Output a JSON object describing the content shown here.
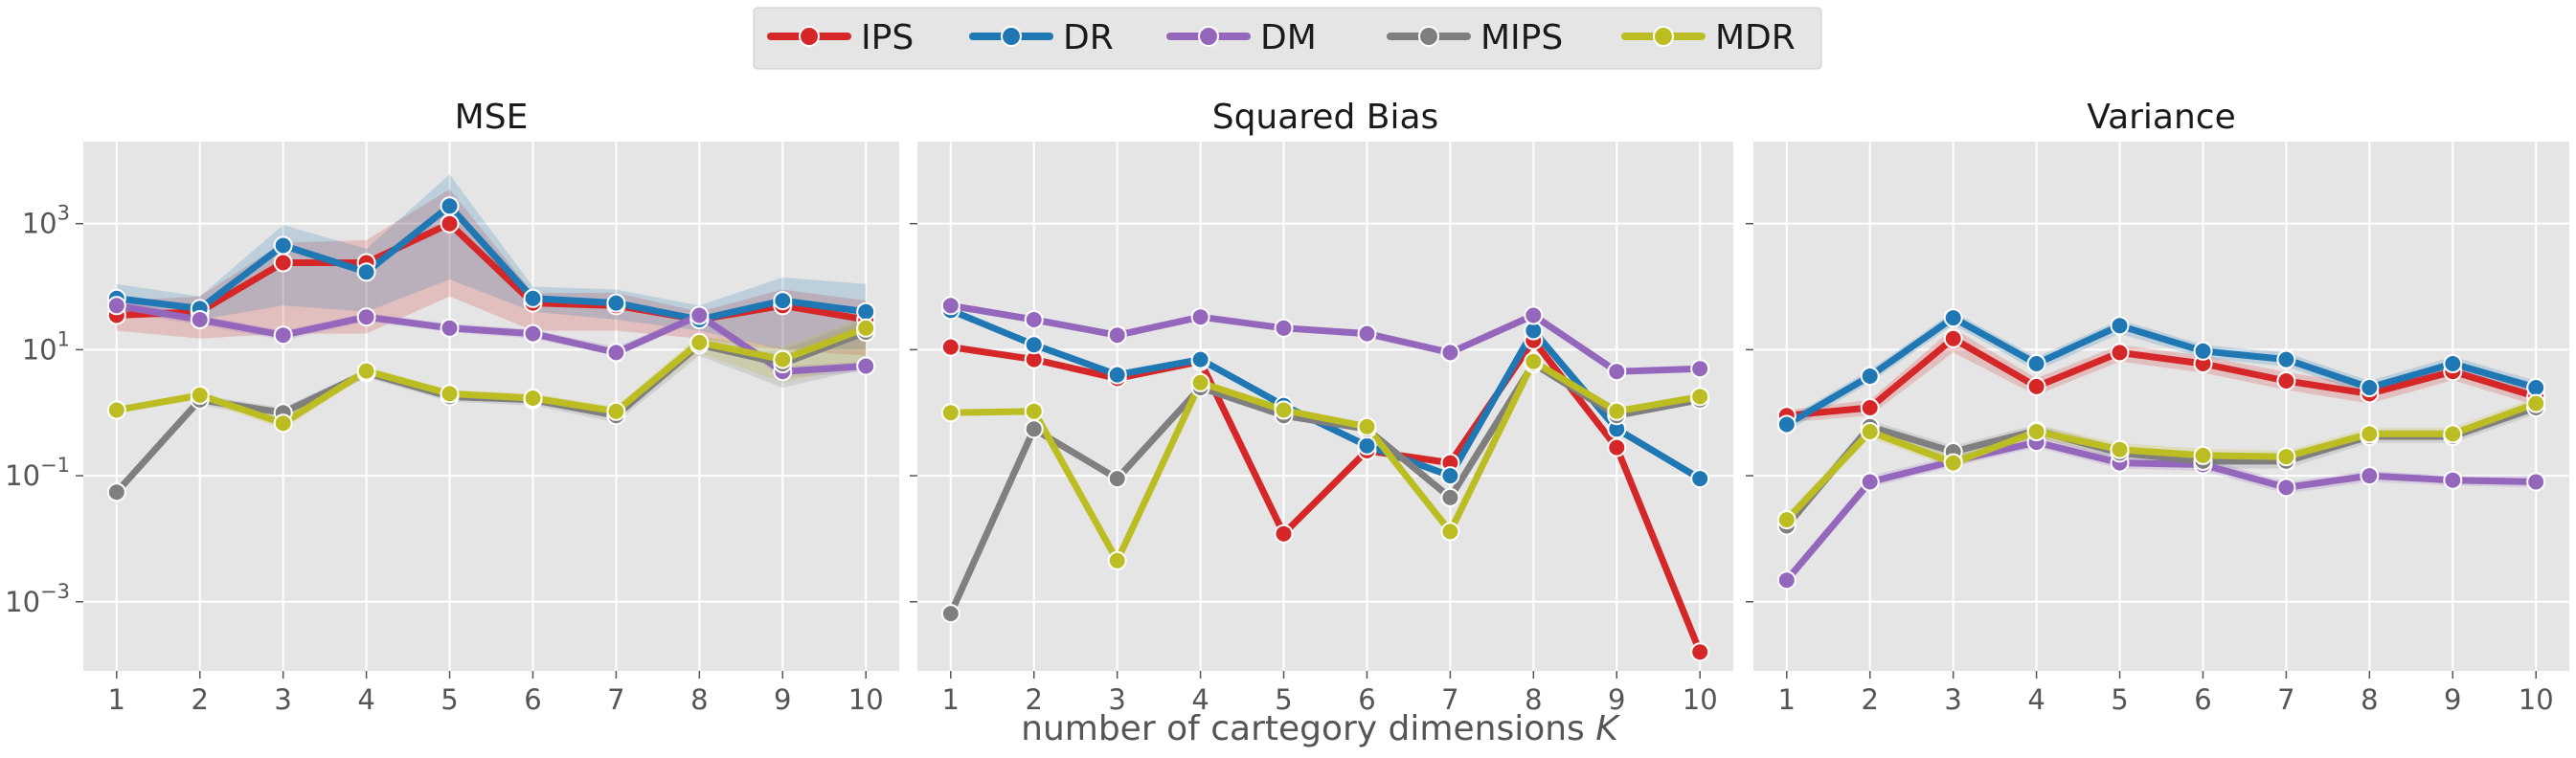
{
  "legend": {
    "position": "top-center",
    "entries": [
      {
        "label": "IPS",
        "color": "#d62728"
      },
      {
        "label": "DR",
        "color": "#1f77b4"
      },
      {
        "label": "DM",
        "color": "#9467bd"
      },
      {
        "label": "MIPS",
        "color": "#7f7f7f"
      },
      {
        "label": "MDR",
        "color": "#bcbd22"
      }
    ]
  },
  "xlabel": {
    "prefix": "number of cartegory dimensions ",
    "var": "K"
  },
  "chart_data": [
    {
      "type": "line",
      "title": "MSE",
      "y_scale": "log",
      "ylim": [
        8e-05,
        20000
      ],
      "yticks": [
        {
          "exp": "-3",
          "value": 0.001
        },
        {
          "exp": "-1",
          "value": 0.1
        },
        {
          "exp": "1",
          "value": 10
        },
        {
          "exp": "3",
          "value": 1000
        }
      ],
      "x": [
        1,
        2,
        3,
        4,
        5,
        6,
        7,
        8,
        9,
        10
      ],
      "grid": true,
      "series": [
        {
          "name": "IPS",
          "color": "#d62728",
          "values": [
            35,
            40,
            240,
            240,
            1000,
            55,
            50,
            30,
            50,
            30
          ],
          "band_low": [
            20,
            15,
            18,
            18,
            70,
            20,
            20,
            15,
            10,
            8
          ],
          "band_high": [
            60,
            70,
            500,
            550,
            3500,
            80,
            80,
            40,
            90,
            60
          ]
        },
        {
          "name": "DR",
          "color": "#1f77b4",
          "values": [
            65,
            45,
            450,
            170,
            1900,
            65,
            55,
            30,
            60,
            40
          ],
          "band_low": [
            35,
            30,
            50,
            40,
            130,
            40,
            30,
            20,
            10,
            10
          ],
          "band_high": [
            110,
            70,
            950,
            400,
            6000,
            100,
            90,
            50,
            140,
            110
          ]
        },
        {
          "name": "DM",
          "color": "#9467bd",
          "values": [
            50,
            30,
            17,
            33,
            22,
            18,
            9,
            35,
            4.5,
            5.5
          ],
          "band_low": [
            40,
            25,
            14,
            28,
            19,
            15,
            8,
            30,
            3.5,
            4.5
          ],
          "band_high": [
            60,
            35,
            20,
            38,
            26,
            21,
            11,
            40,
            5.5,
            6.5
          ]
        },
        {
          "name": "MIPS",
          "color": "#7f7f7f",
          "values": [
            0.055,
            1.6,
            1.0,
            4.3,
            1.8,
            1.6,
            0.9,
            12,
            6,
            19
          ],
          "band_low": [
            0.05,
            1.3,
            0.8,
            3.6,
            1.5,
            1.3,
            0.7,
            8,
            2.5,
            5
          ],
          "band_high": [
            0.06,
            1.9,
            1.2,
            5.0,
            2.1,
            1.9,
            1.1,
            16,
            10,
            30
          ]
        },
        {
          "name": "MDR",
          "color": "#bcbd22",
          "values": [
            1.1,
            1.9,
            0.68,
            4.6,
            2.0,
            1.7,
            1.05,
            13,
            7,
            22
          ],
          "band_low": [
            1.0,
            1.6,
            0.55,
            3.9,
            1.7,
            1.4,
            0.85,
            9,
            3,
            6
          ],
          "band_high": [
            1.2,
            2.2,
            0.8,
            5.3,
            2.3,
            2.0,
            1.25,
            17,
            11,
            33
          ]
        }
      ]
    },
    {
      "type": "line",
      "title": "Squared Bias",
      "y_scale": "log",
      "ylim": [
        8e-05,
        20000
      ],
      "x": [
        1,
        2,
        3,
        4,
        5,
        6,
        7,
        8,
        9,
        10
      ],
      "grid": true,
      "series": [
        {
          "name": "IPS",
          "color": "#d62728",
          "values": [
            11,
            7,
            3.5,
            6.5,
            0.012,
            0.25,
            0.16,
            14,
            0.28,
            0.00016
          ]
        },
        {
          "name": "DR",
          "color": "#1f77b4",
          "values": [
            42,
            12,
            4,
            7,
            1.3,
            0.3,
            0.1,
            20,
            0.55,
            0.09
          ]
        },
        {
          "name": "DM",
          "color": "#9467bd",
          "values": [
            50,
            30,
            17,
            33,
            22,
            18,
            9,
            35,
            4.5,
            5.0
          ]
        },
        {
          "name": "MIPS",
          "color": "#7f7f7f",
          "values": [
            0.00065,
            0.55,
            0.09,
            2.5,
            0.9,
            0.55,
            0.045,
            6,
            0.9,
            1.6
          ]
        },
        {
          "name": "MDR",
          "color": "#bcbd22",
          "values": [
            1.0,
            1.05,
            0.0045,
            3.0,
            1.1,
            0.6,
            0.013,
            6.5,
            1.05,
            1.8
          ]
        }
      ]
    },
    {
      "type": "line",
      "title": "Variance",
      "y_scale": "log",
      "ylim": [
        8e-05,
        20000
      ],
      "x": [
        1,
        2,
        3,
        4,
        5,
        6,
        7,
        8,
        9,
        10
      ],
      "grid": true,
      "series": [
        {
          "name": "IPS",
          "color": "#d62728",
          "values": [
            0.9,
            1.2,
            15,
            2.6,
            9,
            6,
            3.2,
            2.0,
            4.5,
            1.8
          ],
          "band_low": [
            0.7,
            0.9,
            9,
            1.9,
            6.5,
            4.3,
            2.3,
            1.4,
            3.3,
            1.3
          ],
          "band_high": [
            1.1,
            1.6,
            22,
            3.5,
            12,
            8,
            4.4,
            2.7,
            6,
            2.4
          ]
        },
        {
          "name": "DR",
          "color": "#1f77b4",
          "values": [
            0.65,
            3.8,
            32,
            6,
            24,
            9.5,
            7,
            2.5,
            6,
            2.5
          ],
          "band_low": [
            0.5,
            3.0,
            25,
            4.6,
            18,
            7.4,
            5.4,
            1.9,
            4.6,
            1.9
          ],
          "band_high": [
            0.8,
            4.8,
            40,
            7.6,
            30,
            12,
            9,
            3.2,
            7.8,
            3.2
          ]
        },
        {
          "name": "DM",
          "color": "#9467bd",
          "values": [
            0.0022,
            0.08,
            0.17,
            0.34,
            0.16,
            0.15,
            0.065,
            0.1,
            0.085,
            0.08
          ],
          "band_low": [
            0.0018,
            0.065,
            0.14,
            0.28,
            0.13,
            0.12,
            0.052,
            0.08,
            0.07,
            0.065
          ],
          "band_high": [
            0.0027,
            0.1,
            0.21,
            0.42,
            0.2,
            0.19,
            0.08,
            0.12,
            0.1,
            0.1
          ]
        },
        {
          "name": "MIPS",
          "color": "#7f7f7f",
          "values": [
            0.016,
            0.6,
            0.24,
            0.52,
            0.23,
            0.17,
            0.17,
            0.42,
            0.42,
            1.2
          ],
          "band_low": [
            0.013,
            0.48,
            0.19,
            0.41,
            0.18,
            0.13,
            0.13,
            0.33,
            0.33,
            0.95
          ],
          "band_high": [
            0.02,
            0.76,
            0.3,
            0.65,
            0.29,
            0.22,
            0.22,
            0.53,
            0.53,
            1.5
          ]
        },
        {
          "name": "MDR",
          "color": "#bcbd22",
          "values": [
            0.02,
            0.5,
            0.16,
            0.5,
            0.26,
            0.21,
            0.2,
            0.46,
            0.46,
            1.4
          ],
          "band_low": [
            0.016,
            0.4,
            0.13,
            0.4,
            0.21,
            0.17,
            0.16,
            0.37,
            0.37,
            1.1
          ],
          "band_high": [
            0.025,
            0.63,
            0.2,
            0.63,
            0.33,
            0.27,
            0.25,
            0.58,
            0.58,
            1.75
          ]
        }
      ]
    }
  ]
}
